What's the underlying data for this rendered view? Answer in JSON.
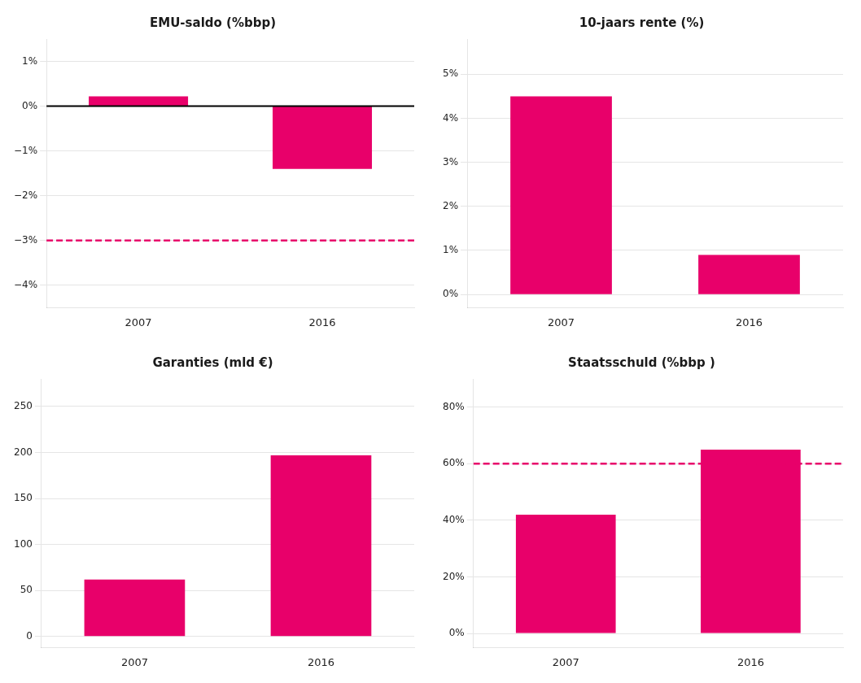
{
  "chart_data": [
    {
      "type": "bar",
      "title": "EMU-saldo (%bbp)",
      "categories": [
        "2007",
        "2016"
      ],
      "values": [
        0.22,
        -1.4
      ],
      "color": "#E8006A",
      "ylim": [
        -4.5,
        1.5
      ],
      "yticks": [
        {
          "value": 1,
          "label": "1%"
        },
        {
          "value": 0,
          "label": "0%"
        },
        {
          "value": -1,
          "label": "−1%"
        },
        {
          "value": -2,
          "label": "−2%"
        },
        {
          "value": -3,
          "label": "−3%"
        },
        {
          "value": -4,
          "label": "−4%"
        }
      ],
      "grid": true,
      "reference_lines": [
        {
          "y": -3,
          "color": "#E8006A",
          "line_style": "dashed"
        },
        {
          "y": 0,
          "color": "#000000",
          "line_style": "solid"
        }
      ]
    },
    {
      "type": "bar",
      "title": "10-jaars rente (%)",
      "categories": [
        "2007",
        "2016"
      ],
      "values": [
        4.5,
        0.9
      ],
      "color": "#E8006A",
      "ylim": [
        -0.3,
        5.8
      ],
      "yticks": [
        {
          "value": 0,
          "label": "0%"
        },
        {
          "value": 1,
          "label": "1%"
        },
        {
          "value": 2,
          "label": "2%"
        },
        {
          "value": 3,
          "label": "3%"
        },
        {
          "value": 4,
          "label": "4%"
        },
        {
          "value": 5,
          "label": "5%"
        }
      ],
      "grid": true
    },
    {
      "type": "bar",
      "title": "Garanties (mld €)",
      "categories": [
        "2007",
        "2016"
      ],
      "values": [
        62,
        197
      ],
      "color": "#E8006A",
      "ylim": [
        -12,
        280
      ],
      "yticks": [
        0,
        50,
        100,
        150,
        200,
        250
      ],
      "grid": true
    },
    {
      "type": "bar",
      "title": "Staatsschuld (%bbp )",
      "categories": [
        "2007",
        "2016"
      ],
      "values": [
        42,
        65
      ],
      "color": "#E8006A",
      "ylim": [
        -5,
        90
      ],
      "yticks": [
        {
          "value": 0,
          "label": "0%"
        },
        {
          "value": 20,
          "label": "20%"
        },
        {
          "value": 40,
          "label": "40%"
        },
        {
          "value": 60,
          "label": "60%"
        },
        {
          "value": 80,
          "label": "80%"
        }
      ],
      "grid": true,
      "reference_lines": [
        {
          "y": 60,
          "color": "#E8006A",
          "line_style": "dashed"
        }
      ]
    }
  ]
}
